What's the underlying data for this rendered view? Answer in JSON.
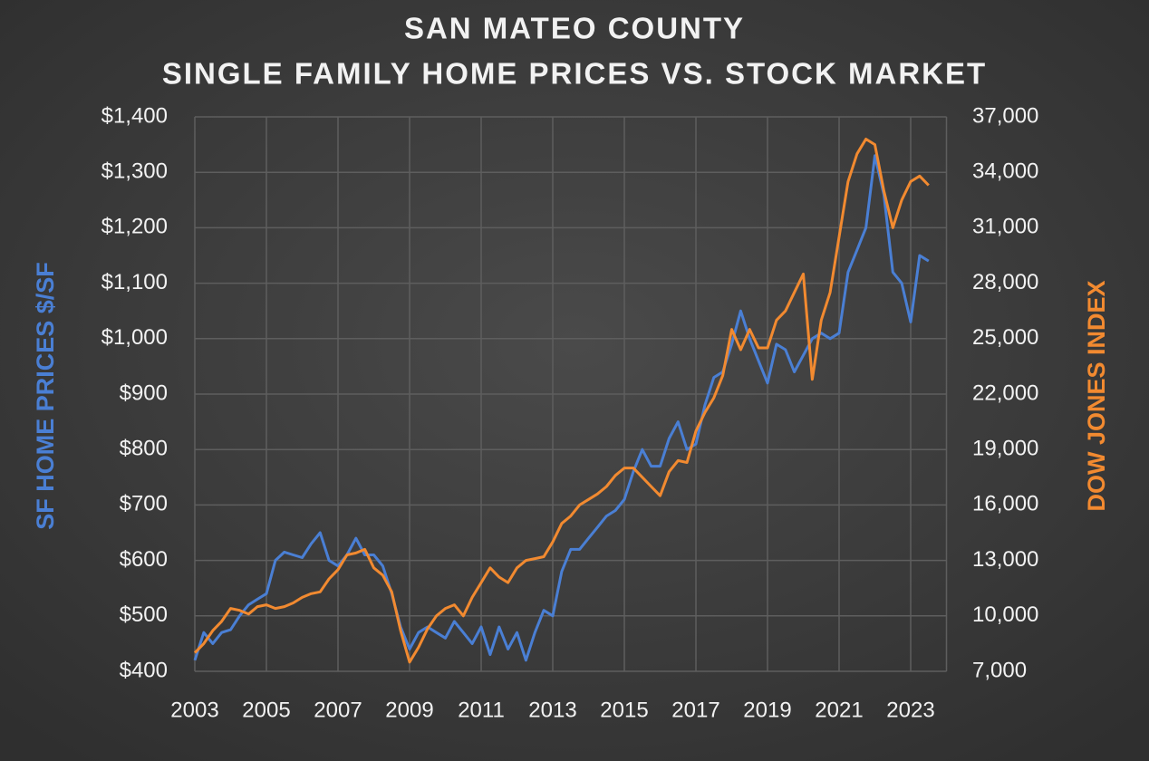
{
  "chart_data": {
    "type": "line",
    "title": "SAN MATEO COUNTY",
    "subtitle": "SINGLE FAMILY HOME PRICES VS. STOCK MARKET",
    "y_label": "SF HOME PRICES $/SF",
    "y2_label": "DOW JONES INDEX",
    "grid": true,
    "xlim": [
      2003,
      2024
    ],
    "xticks": [
      2003,
      2005,
      2007,
      2009,
      2011,
      2013,
      2015,
      2017,
      2019,
      2021,
      2023
    ],
    "ylim": [
      400,
      1400
    ],
    "yticks": [
      {
        "value": 400,
        "label": "$400"
      },
      {
        "value": 500,
        "label": "$500"
      },
      {
        "value": 600,
        "label": "$600"
      },
      {
        "value": 700,
        "label": "$700"
      },
      {
        "value": 800,
        "label": "$800"
      },
      {
        "value": 900,
        "label": "$900"
      },
      {
        "value": 1000,
        "label": "$1,000"
      },
      {
        "value": 1100,
        "label": "$1,100"
      },
      {
        "value": 1200,
        "label": "$1,200"
      },
      {
        "value": 1300,
        "label": "$1,300"
      },
      {
        "value": 1400,
        "label": "$1,400"
      }
    ],
    "y2lim": [
      7000,
      37000
    ],
    "y2ticks": [
      {
        "value": 7000,
        "label": "7,000"
      },
      {
        "value": 10000,
        "label": "10,000"
      },
      {
        "value": 13000,
        "label": "13,000"
      },
      {
        "value": 16000,
        "label": "16,000"
      },
      {
        "value": 19000,
        "label": "19,000"
      },
      {
        "value": 22000,
        "label": "22,000"
      },
      {
        "value": 25000,
        "label": "25,000"
      },
      {
        "value": 28000,
        "label": "28,000"
      },
      {
        "value": 31000,
        "label": "31,000"
      },
      {
        "value": 34000,
        "label": "34,000"
      },
      {
        "value": 37000,
        "label": "37,000"
      }
    ],
    "x": [
      2003,
      2003.25,
      2003.5,
      2003.75,
      2004,
      2004.25,
      2004.5,
      2004.75,
      2005,
      2005.25,
      2005.5,
      2005.75,
      2006,
      2006.25,
      2006.5,
      2006.75,
      2007,
      2007.25,
      2007.5,
      2007.75,
      2008,
      2008.25,
      2008.5,
      2008.75,
      2009,
      2009.25,
      2009.5,
      2009.75,
      2010,
      2010.25,
      2010.5,
      2010.75,
      2011,
      2011.25,
      2011.5,
      2011.75,
      2012,
      2012.25,
      2012.5,
      2012.75,
      2013,
      2013.25,
      2013.5,
      2013.75,
      2014,
      2014.25,
      2014.5,
      2014.75,
      2015,
      2015.25,
      2015.5,
      2015.75,
      2016,
      2016.25,
      2016.5,
      2016.75,
      2017,
      2017.25,
      2017.5,
      2017.75,
      2018,
      2018.25,
      2018.5,
      2018.75,
      2019,
      2019.25,
      2019.5,
      2019.75,
      2020,
      2020.25,
      2020.5,
      2020.75,
      2021,
      2021.25,
      2021.5,
      2021.75,
      2022,
      2022.25,
      2022.5,
      2022.75,
      2023,
      2023.25,
      2023.5
    ],
    "series": [
      {
        "name": "SF HOME PRICES $/SF",
        "color": "#4a7fd4",
        "values": [
          420,
          470,
          450,
          470,
          475,
          500,
          520,
          530,
          540,
          600,
          615,
          610,
          605,
          630,
          650,
          600,
          590,
          610,
          640,
          610,
          610,
          590,
          540,
          480,
          440,
          470,
          480,
          470,
          460,
          490,
          470,
          450,
          480,
          430,
          480,
          440,
          470,
          420,
          470,
          510,
          500,
          580,
          620,
          620,
          640,
          660,
          680,
          690,
          710,
          760,
          800,
          770,
          770,
          820,
          850,
          800,
          810,
          880,
          930,
          940,
          990,
          1050,
          1000,
          960,
          920,
          990,
          980,
          940,
          970,
          1000,
          1010,
          1000,
          1010,
          1120,
          1160,
          1200,
          1330,
          1260,
          1120,
          1100,
          1030,
          1150,
          1140
        ]
      },
      {
        "name": "DOW JONES INDEX",
        "color": "#f28a30",
        "axis": "y2",
        "values": [
          8000,
          8500,
          9200,
          9700,
          10400,
          10300,
          10100,
          10500,
          10600,
          10400,
          10500,
          10700,
          11000,
          11200,
          11300,
          12000,
          12500,
          13300,
          13400,
          13600,
          12600,
          12200,
          11300,
          9200,
          7500,
          8300,
          9300,
          10000,
          10400,
          10600,
          10000,
          11000,
          11800,
          12600,
          12100,
          11800,
          12600,
          13000,
          13100,
          13200,
          14000,
          15000,
          15400,
          16000,
          16300,
          16600,
          17000,
          17600,
          18000,
          18000,
          17500,
          17000,
          16500,
          17800,
          18400,
          18300,
          20000,
          21000,
          21800,
          23000,
          25500,
          24400,
          25500,
          24500,
          24500,
          26000,
          26500,
          27500,
          28500,
          22800,
          26000,
          27500,
          30500,
          33500,
          35000,
          35800,
          35500,
          33000,
          31000,
          32500,
          33500,
          33800,
          33300
        ]
      }
    ]
  }
}
